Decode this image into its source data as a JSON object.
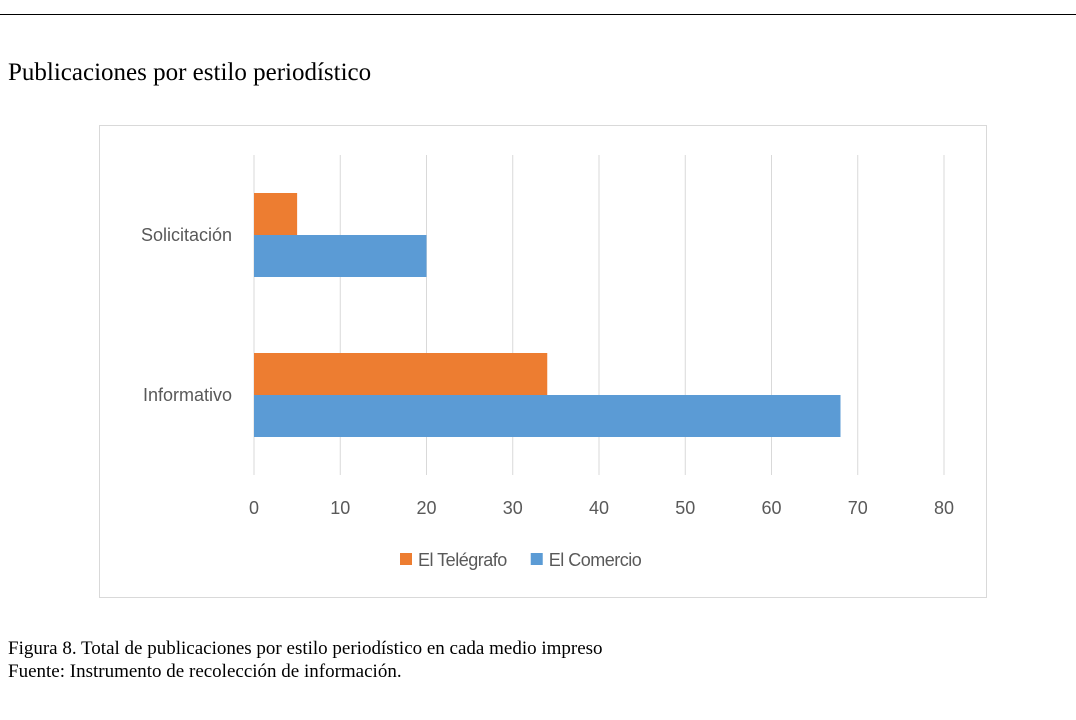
{
  "chart_data": {
    "type": "hbar",
    "title": "Publicaciones por estilo periodístico",
    "categories": [
      "Solicitación",
      "Informativo"
    ],
    "series": [
      {
        "name": "El Telégrafo",
        "color": "#ed7d31",
        "values": [
          5,
          34
        ]
      },
      {
        "name": "El Comercio",
        "color": "#5b9bd5",
        "values": [
          20,
          68
        ]
      }
    ],
    "xlim": [
      0,
      80
    ],
    "xticks": [
      0,
      10,
      20,
      30,
      40,
      50,
      60,
      70,
      80
    ],
    "grid": true,
    "legend": "bottom",
    "caption": "Figura 8. Total de publicaciones por estilo periodístico en cada medio impreso",
    "source": "Fuente: Instrumento de recolección de información."
  }
}
